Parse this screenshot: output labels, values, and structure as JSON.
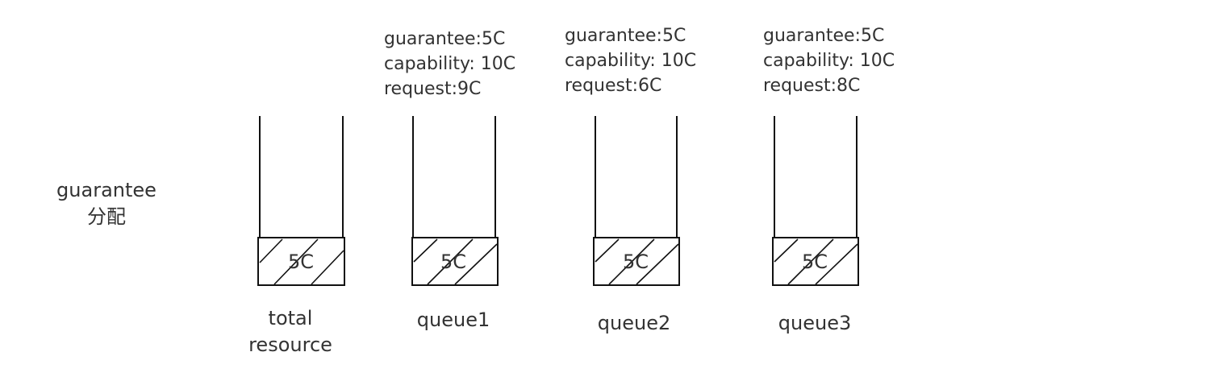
{
  "side_label": {
    "line1": "guarantee",
    "line2": "分配"
  },
  "containers": [
    {
      "id": "total",
      "name_lines": [
        "total",
        "resource"
      ],
      "fill_label": "5C",
      "info_lines": []
    },
    {
      "id": "queue1",
      "name_lines": [
        "queue1"
      ],
      "fill_label": "5C",
      "info_lines": [
        "guarantee:5C",
        "capability: 10C",
        "request:9C"
      ]
    },
    {
      "id": "queue2",
      "name_lines": [
        "queue2"
      ],
      "fill_label": "5C",
      "info_lines": [
        "guarantee:5C",
        "capability: 10C",
        "request:6C"
      ]
    },
    {
      "id": "queue3",
      "name_lines": [
        "queue3"
      ],
      "fill_label": "5C",
      "info_lines": [
        "guarantee:5C",
        "capability: 10C",
        "request:8C"
      ]
    }
  ]
}
